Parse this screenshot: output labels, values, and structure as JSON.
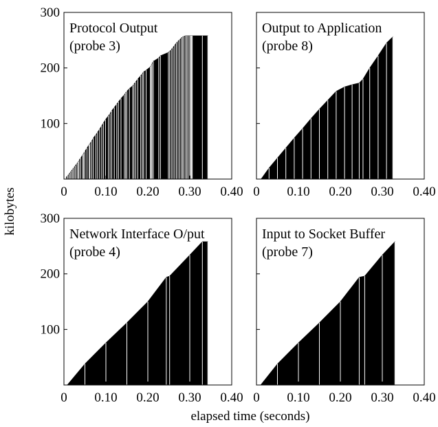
{
  "figure": {
    "ylabel": "kilobytes",
    "xlabel": "elapsed time (seconds)"
  },
  "chart_data": [
    {
      "type": "bar",
      "title": "Protocol Output",
      "subtitle": "(probe 3)",
      "xlim": [
        0,
        0.4
      ],
      "ylim": [
        0,
        300
      ],
      "xticks": [
        0,
        0.1,
        0.2,
        0.3,
        0.4
      ],
      "xtick_labels": [
        "0",
        "0.10",
        "0.20",
        "0.30",
        "0.40"
      ],
      "yticks": [
        100,
        200,
        300
      ],
      "ytick_labels": [
        "100",
        "200",
        "300"
      ],
      "grid": false,
      "series": [
        {
          "x": [
            0.005,
            0.009,
            0.012,
            0.015,
            0.018,
            0.021,
            0.024,
            0.027,
            0.031,
            0.034,
            0.036,
            0.04,
            0.045,
            0.047,
            0.05,
            0.055,
            0.06,
            0.062,
            0.066,
            0.07,
            0.076,
            0.08,
            0.085,
            0.09,
            0.094,
            0.099,
            0.106,
            0.11,
            0.114,
            0.12,
            0.126,
            0.13,
            0.136,
            0.144,
            0.147,
            0.15,
            0.156,
            0.164,
            0.167,
            0.171,
            0.176,
            0.183,
            0.187,
            0.19,
            0.196,
            0.206,
            0.208,
            0.21,
            0.213,
            0.226,
            0.23,
            0.249,
            0.252,
            0.256,
            0.26,
            0.264,
            0.268,
            0.272,
            0.276,
            0.28,
            0.283,
            0.286,
            0.29,
            0.293,
            0.296,
            0.3,
            0.302,
            0.304,
            0.306,
            0.33,
            0.343
          ],
          "y": [
            3,
            6,
            9,
            12,
            15,
            18,
            21,
            24,
            28,
            31,
            34,
            38,
            44,
            46,
            50,
            56,
            62,
            64,
            68,
            74,
            80,
            84,
            90,
            96,
            101,
            107,
            114,
            118,
            123,
            129,
            135,
            139,
            145,
            152,
            155,
            158,
            163,
            168,
            171,
            175,
            180,
            186,
            190,
            193,
            196,
            202,
            205,
            208,
            212,
            218,
            222,
            228,
            230,
            233,
            237,
            241,
            245,
            248,
            251,
            254,
            256,
            257,
            258,
            258,
            258,
            258,
            258,
            258,
            258,
            258,
            258
          ]
        }
      ]
    },
    {
      "type": "bar",
      "title": "Output to Application",
      "subtitle": "(probe 8)",
      "xlim": [
        0,
        0.4
      ],
      "ylim": [
        0,
        300
      ],
      "xticks": [
        0,
        0.1,
        0.2,
        0.3,
        0.4
      ],
      "xtick_labels": [
        "0",
        "0.10",
        "0.20",
        "0.30",
        "0.40"
      ],
      "yticks": [
        100,
        200,
        300
      ],
      "ytick_labels": [
        "100",
        "200",
        "300"
      ],
      "grid": false,
      "series": [
        {
          "x": [
            0.011,
            0.03,
            0.05,
            0.07,
            0.09,
            0.11,
            0.13,
            0.15,
            0.17,
            0.19,
            0.21,
            0.228,
            0.245,
            0.254,
            0.27,
            0.29,
            0.31,
            0.325
          ],
          "y": [
            0,
            20,
            38,
            56,
            74,
            91,
            109,
            126,
            142,
            158,
            166,
            170,
            173,
            180,
            200,
            222,
            245,
            256
          ]
        }
      ]
    },
    {
      "type": "bar",
      "title": "Network Interface O/put",
      "subtitle": "(probe 4)",
      "xlim": [
        0,
        0.4
      ],
      "ylim": [
        0,
        300
      ],
      "xticks": [
        0,
        0.1,
        0.2,
        0.3,
        0.4
      ],
      "xtick_labels": [
        "0",
        "0.10",
        "0.20",
        "0.30",
        "0.40"
      ],
      "yticks": [
        100,
        200,
        300
      ],
      "ytick_labels": [
        "100",
        "200",
        "300"
      ],
      "grid": false,
      "series": [
        {
          "x": [
            0.008,
            0.05,
            0.1,
            0.15,
            0.2,
            0.244,
            0.252,
            0.3,
            0.33,
            0.343
          ],
          "y": [
            0,
            38,
            76,
            112,
            150,
            194,
            196,
            234,
            258,
            258
          ]
        }
      ]
    },
    {
      "type": "bar",
      "title": "Input to Socket Buffer",
      "subtitle": "(probe 7)",
      "xlim": [
        0,
        0.4
      ],
      "ylim": [
        0,
        300
      ],
      "xticks": [
        0,
        0.1,
        0.2,
        0.3,
        0.4
      ],
      "xtick_labels": [
        "0",
        "0.10",
        "0.20",
        "0.30",
        "0.40"
      ],
      "yticks": [
        100,
        200,
        300
      ],
      "ytick_labels": [
        "100",
        "200",
        "300"
      ],
      "grid": false,
      "series": [
        {
          "x": [
            0.01,
            0.05,
            0.1,
            0.15,
            0.2,
            0.245,
            0.258,
            0.3,
            0.33
          ],
          "y": [
            0,
            38,
            76,
            112,
            150,
            194,
            196,
            234,
            258
          ]
        }
      ]
    }
  ]
}
